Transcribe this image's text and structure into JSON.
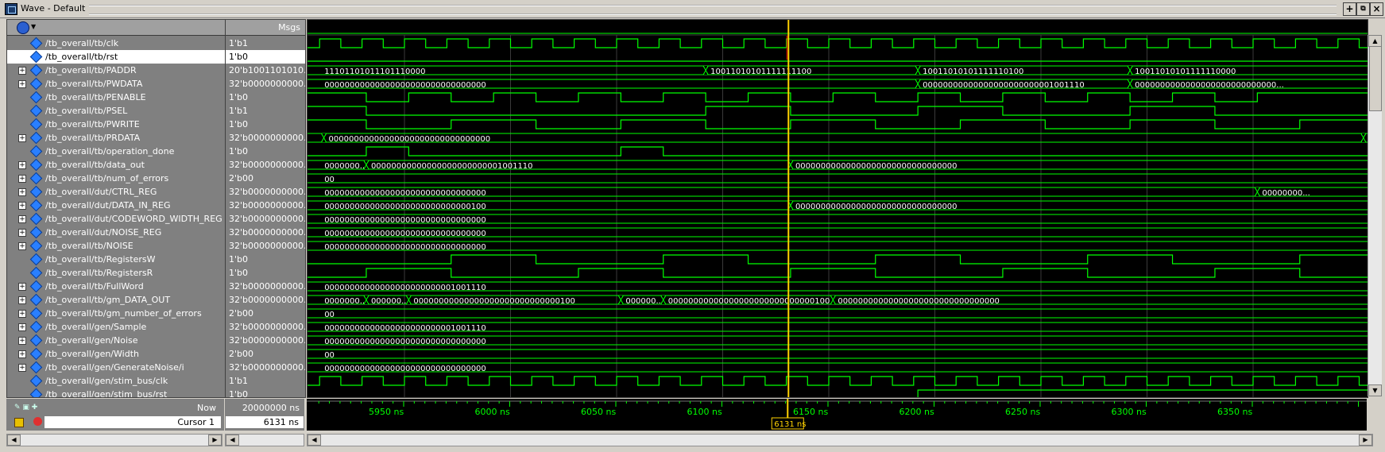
{
  "window": {
    "title": "Wave - Default"
  },
  "header": {
    "msgs_label": "Msgs"
  },
  "signals": [
    {
      "name": "/tb_overall/tb/clk",
      "value": "1'b1",
      "bus": false
    },
    {
      "name": "/tb_overall/tb/rst",
      "value": "1'b0",
      "bus": false,
      "selected": true
    },
    {
      "name": "/tb_overall/tb/PADDR",
      "value": "20'b1001101010...",
      "bus": true
    },
    {
      "name": "/tb_overall/tb/PWDATA",
      "value": "32'b0000000000...",
      "bus": true
    },
    {
      "name": "/tb_overall/tb/PENABLE",
      "value": "1'b0",
      "bus": false
    },
    {
      "name": "/tb_overall/tb/PSEL",
      "value": "1'b1",
      "bus": false
    },
    {
      "name": "/tb_overall/tb/PWRITE",
      "value": "1'b0",
      "bus": false
    },
    {
      "name": "/tb_overall/tb/PRDATA",
      "value": "32'b0000000000...",
      "bus": true
    },
    {
      "name": "/tb_overall/tb/operation_done",
      "value": "1'b0",
      "bus": false
    },
    {
      "name": "/tb_overall/tb/data_out",
      "value": "32'b0000000000...",
      "bus": true
    },
    {
      "name": "/tb_overall/tb/num_of_errors",
      "value": "2'b00",
      "bus": true
    },
    {
      "name": "/tb_overall/dut/CTRL_REG",
      "value": "32'b0000000000...",
      "bus": true
    },
    {
      "name": "/tb_overall/dut/DATA_IN_REG",
      "value": "32'b0000000000...",
      "bus": true
    },
    {
      "name": "/tb_overall/dut/CODEWORD_WIDTH_REG",
      "value": "32'b0000000000...",
      "bus": true
    },
    {
      "name": "/tb_overall/dut/NOISE_REG",
      "value": "32'b0000000000...",
      "bus": true
    },
    {
      "name": "/tb_overall/tb/NOISE",
      "value": "32'b0000000000...",
      "bus": true
    },
    {
      "name": "/tb_overall/tb/RegistersW",
      "value": "1'b0",
      "bus": false
    },
    {
      "name": "/tb_overall/tb/RegistersR",
      "value": "1'b0",
      "bus": false
    },
    {
      "name": "/tb_overall/tb/FullWord",
      "value": "32'b0000000000...",
      "bus": true
    },
    {
      "name": "/tb_overall/tb/gm_DATA_OUT",
      "value": "32'b0000000000...",
      "bus": true
    },
    {
      "name": "/tb_overall/tb/gm_number_of_errors",
      "value": "2'b00",
      "bus": true
    },
    {
      "name": "/tb_overall/gen/Sample",
      "value": "32'b0000000000...",
      "bus": true
    },
    {
      "name": "/tb_overall/gen/Noise",
      "value": "32'b0000000000...",
      "bus": true
    },
    {
      "name": "/tb_overall/gen/Width",
      "value": "2'b00",
      "bus": true
    },
    {
      "name": "/tb_overall/gen/GenerateNoise/i",
      "value": "32'b0000000000...",
      "bus": true
    },
    {
      "name": "/tb_overall/gen/stim_bus/clk",
      "value": "1'b1",
      "bus": false
    },
    {
      "name": "/tb_overall/gen/stim_bus/rst",
      "value": "1'b0",
      "bus": false
    }
  ],
  "bus_labels": {
    "PADDR": [
      [
        "11101101011101110000"
      ],
      [
        "10011010101111111100"
      ],
      [
        "10011010101111110100"
      ],
      [
        "10011010101111110000"
      ]
    ],
    "PWDATA": [
      "00000000000000000000000000000000",
      "00000000000000000000000001001110",
      "0000000000000000000000000000..."
    ],
    "PRDATA": "00000000000000000000000000000000",
    "data_out": [
      "0000000...",
      "00000000000000000000000001001110",
      "00000000000000000000000000000000"
    ],
    "num_of_errors": "00",
    "CTRL_REG": [
      "00000000000000000000000000000000",
      "00000000..."
    ],
    "DATA_IN_REG": [
      "00000000000000000000000000000100",
      "00000000000000000000000000000000"
    ],
    "CODEWORD_WIDTH_REG": "00000000000000000000000000000000",
    "NOISE_REG": "00000000000000000000000000000000",
    "NOISE": "00000000000000000000000000000000",
    "FullWord": "00000000000000000000000001001110",
    "gm_DATA_OUT": [
      "0000000...",
      "000000...",
      "00000000000000000000000000000100",
      "000000...",
      "00000000000000000000000000000100",
      "00000000000000000000000000000000"
    ],
    "gm_number_of_errors": "00",
    "Sample": "00000000000000000000000001001110",
    "Noise": "00000000000000000000000000000000",
    "Width": "00",
    "GenerateNoise_i": "00000000000000000000000000000000"
  },
  "footer": {
    "now_label": "Now",
    "now_value": "20000000 ns",
    "cursor_label": "Cursor 1",
    "cursor_value": "6131 ns",
    "cursor_marker": "6131 ns",
    "ticks": [
      "5950 ns",
      "6000 ns",
      "6050 ns",
      "6100 ns",
      "6150 ns",
      "6200 ns",
      "6250 ns",
      "6300 ns",
      "6350 ns"
    ]
  },
  "colors": {
    "wave": "#00ff00",
    "cursor": "#ffd200",
    "background": "#000000",
    "grid": "#3a3a3a"
  }
}
